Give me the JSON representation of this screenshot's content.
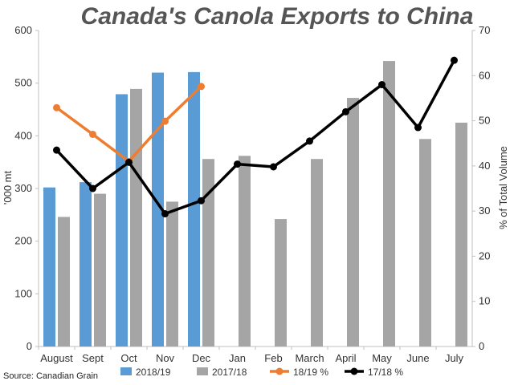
{
  "chart_data": {
    "type": "bar",
    "title": "Canada's Canola Exports to China",
    "ylabel": "'000 mt",
    "y2label": "% of Total Volume",
    "categories": [
      "August",
      "Sept",
      "Oct",
      "Nov",
      "Dec",
      "Jan",
      "Feb",
      "March",
      "April",
      "May",
      "June",
      "July"
    ],
    "ylim": [
      0,
      600
    ],
    "y2lim": [
      0,
      70
    ],
    "yticks": [
      0,
      100,
      200,
      300,
      400,
      500,
      600
    ],
    "y2ticks": [
      0,
      10,
      20,
      30,
      40,
      50,
      60,
      70
    ],
    "series": [
      {
        "name": "2018/19",
        "kind": "bar",
        "axis": "left",
        "color": "#5b9bd5",
        "values": [
          302,
          312,
          479,
          520,
          521,
          null,
          null,
          null,
          null,
          null,
          null,
          null
        ]
      },
      {
        "name": "2017/18",
        "kind": "bar",
        "axis": "left",
        "color": "#a5a5a5",
        "values": [
          246,
          290,
          489,
          275,
          356,
          362,
          242,
          356,
          472,
          542,
          394,
          425
        ]
      },
      {
        "name": "18/19 %",
        "kind": "line",
        "axis": "right",
        "color": "#ed7d31",
        "values": [
          52.9,
          47.0,
          41.0,
          49.9,
          57.6,
          null,
          null,
          null,
          null,
          null,
          null,
          null
        ]
      },
      {
        "name": "17/18 %",
        "kind": "line",
        "axis": "right",
        "color": "#000000",
        "values": [
          43.5,
          35.0,
          40.8,
          29.4,
          32.3,
          40.4,
          39.8,
          45.5,
          52.0,
          58.0,
          48.5,
          63.4
        ]
      }
    ],
    "grid": false,
    "legend_position": "bottom",
    "source": "Source: Canadian Grain"
  }
}
